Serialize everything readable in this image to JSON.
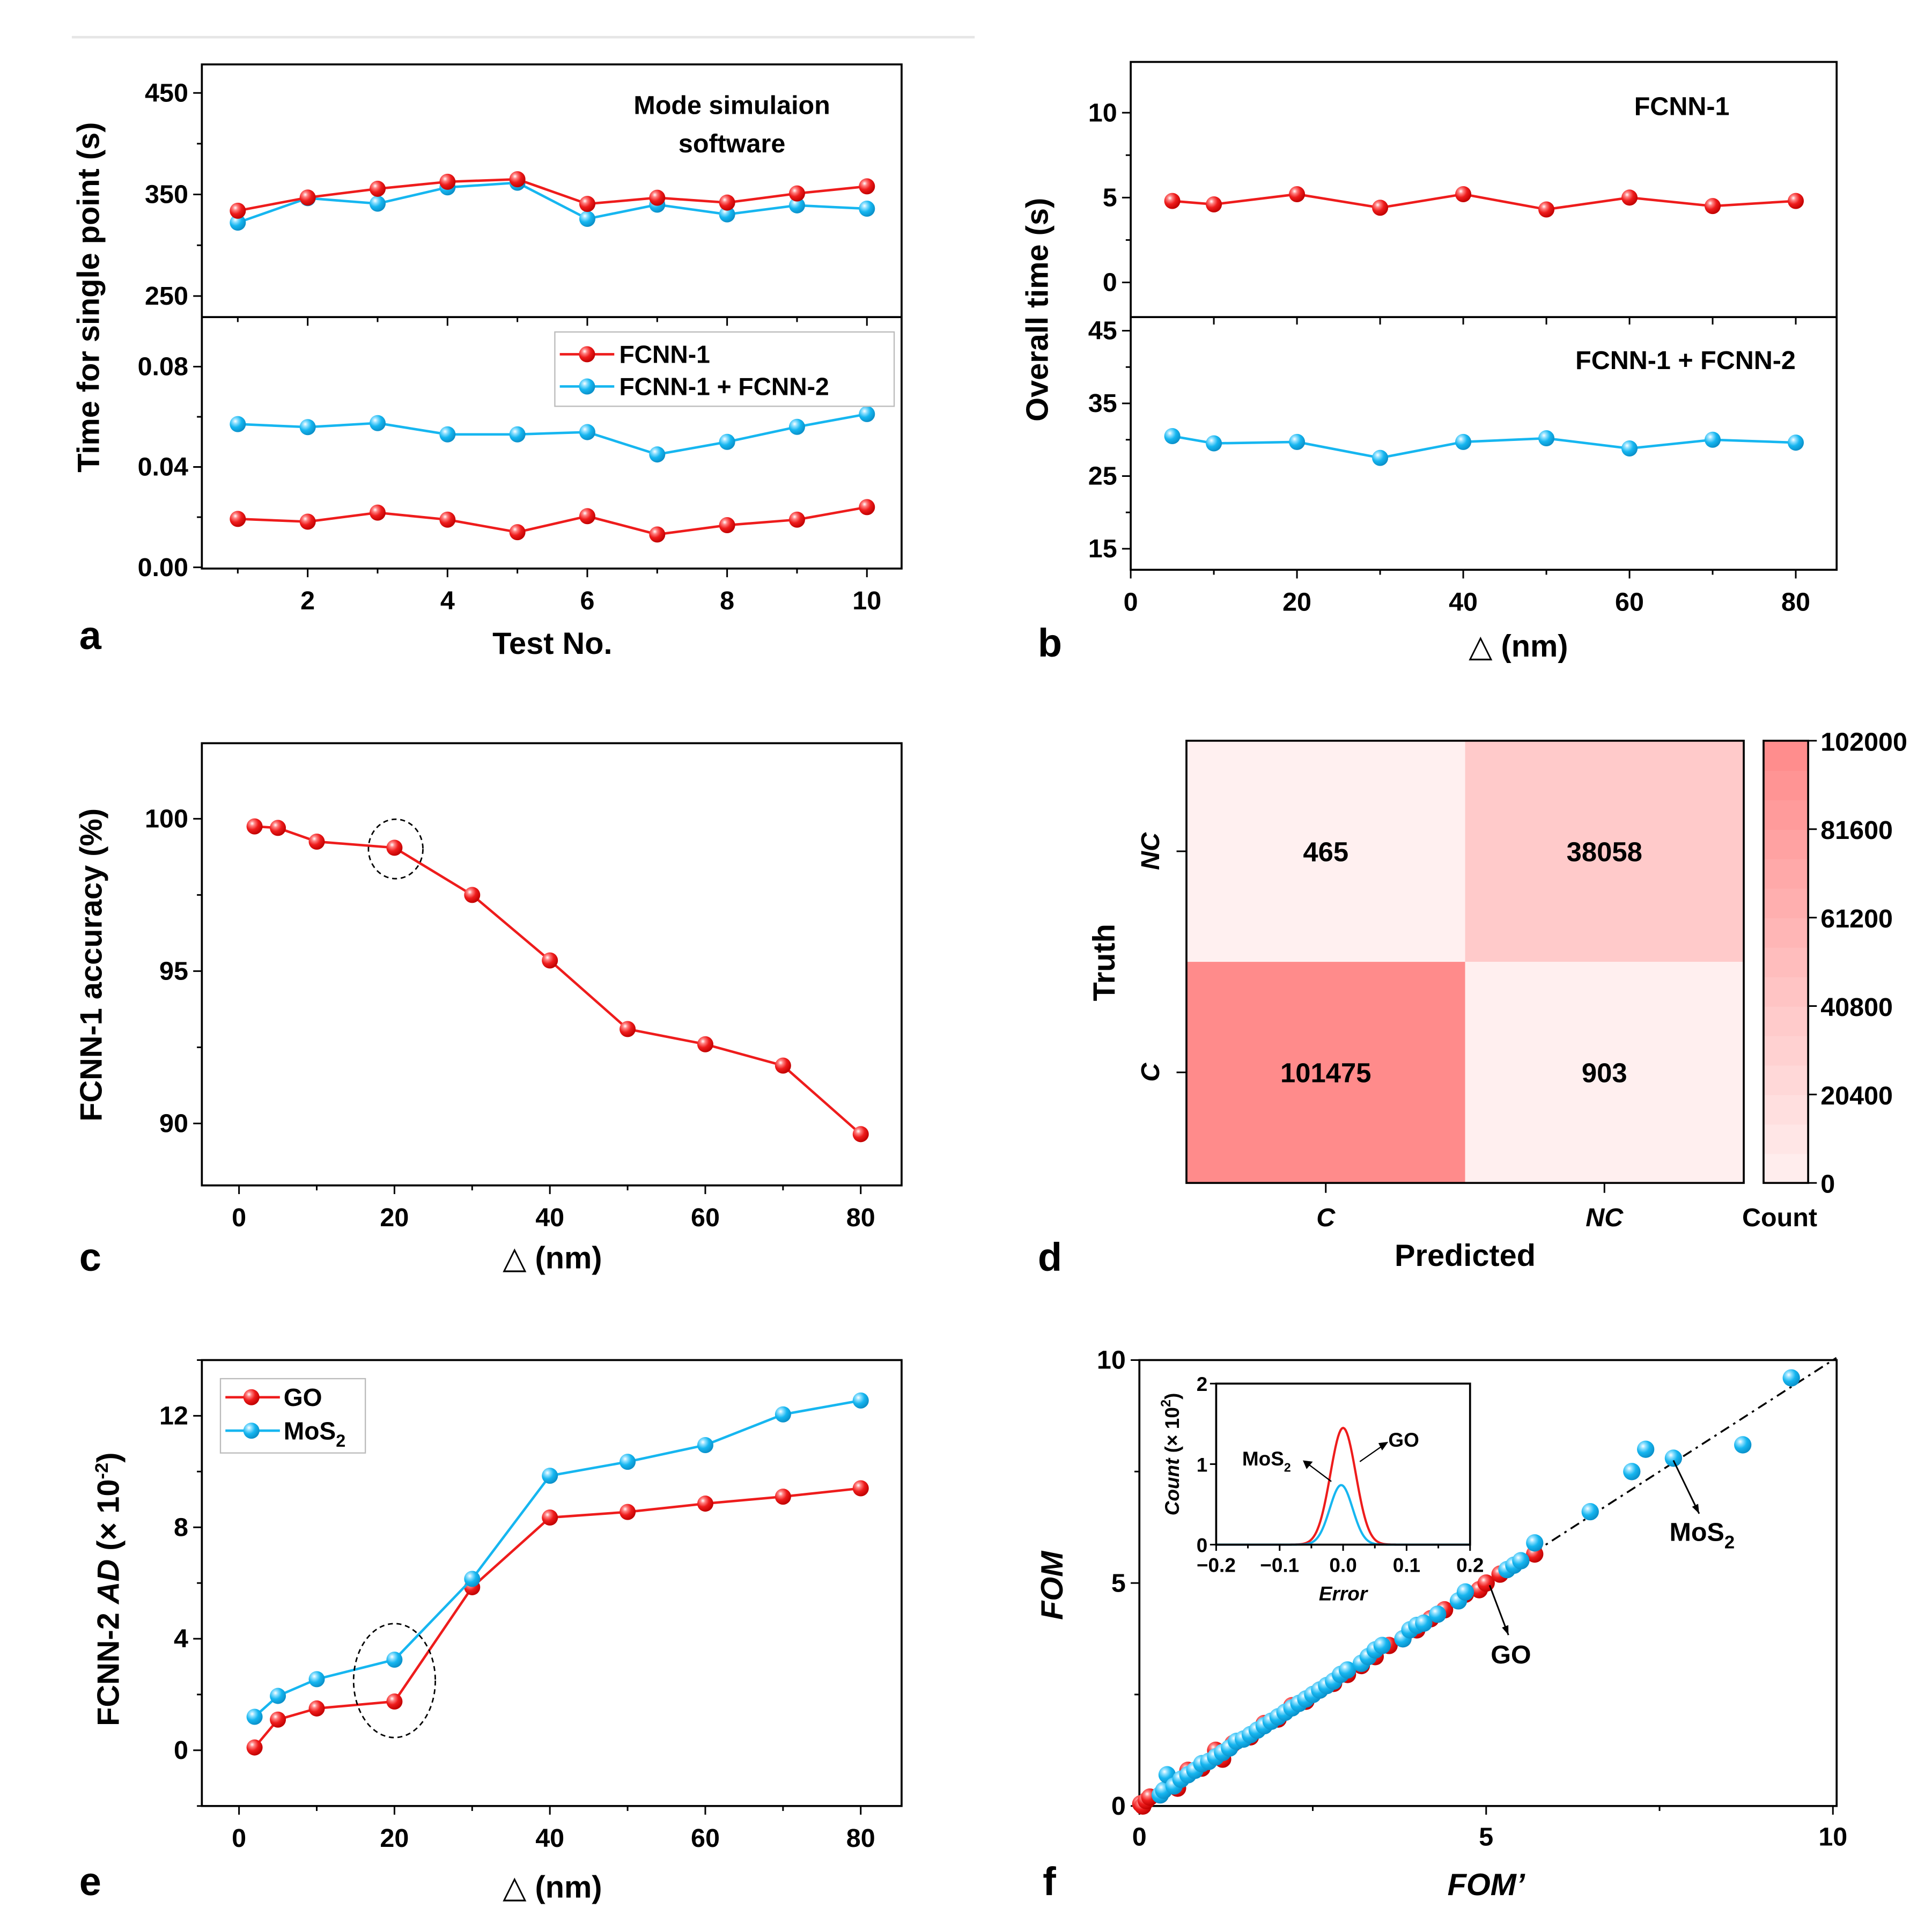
{
  "colors": {
    "red": "#ee1c1c",
    "blue": "#16b6f0",
    "heat_low": "#fff0f0",
    "heat_high": "#ff8a8a",
    "divider": "#e6e6e6"
  },
  "chart_data": [
    {
      "id": "a",
      "panel_letter": "a",
      "type": "line",
      "title": "",
      "xlabel": "Test No.",
      "ylabel": "Time for single point (s)",
      "x": [
        1,
        2,
        3,
        4,
        5,
        6,
        7,
        8,
        9,
        10
      ],
      "x_ticks": [
        2,
        4,
        6,
        8,
        10
      ],
      "subplots": [
        {
          "name": "upper",
          "annotation": [
            "Mode simulaion",
            "software"
          ],
          "ylim": [
            235,
            475
          ],
          "y_ticks": [
            250,
            350,
            450
          ],
          "series": [
            {
              "name": "FCNN-1",
              "color": "red",
              "values": [
                334,
                347,
                355.6,
                362.5,
                365,
                340.7,
                346.8,
                342,
                351,
                358
              ]
            },
            {
              "name": "FCNN-1 + FCNN-2",
              "color": "blue",
              "values": [
                322.3,
                346.4,
                341,
                357,
                361.6,
                326,
                340,
                330.4,
                339.3,
                336
              ]
            }
          ]
        },
        {
          "name": "lower",
          "ylim": [
            0,
            0.098
          ],
          "y_ticks": [
            0.0,
            0.04,
            0.08
          ],
          "y_tick_labels": [
            "0.00",
            "0.04",
            "0.08"
          ],
          "series": [
            {
              "name": "FCNN-1",
              "color": "red",
              "values": [
                0.0193,
                0.0182,
                0.0218,
                0.019,
                0.014,
                0.0204,
                0.0131,
                0.0168,
                0.019,
                0.024
              ]
            },
            {
              "name": "FCNN-1 + FCNN-2",
              "color": "blue",
              "values": [
                0.0571,
                0.0559,
                0.0575,
                0.053,
                0.053,
                0.0539,
                0.045,
                0.05,
                0.056,
                0.0611
              ]
            }
          ]
        }
      ],
      "legend": {
        "position": "lower-subplot top-right",
        "entries": [
          "FCNN-1",
          "FCNN-1 + FCNN-2"
        ]
      }
    },
    {
      "id": "b",
      "panel_letter": "b",
      "type": "line",
      "xlabel": "△ (nm)",
      "ylabel": "Overall time (s)",
      "x": [
        5,
        10,
        20,
        30,
        40,
        50,
        60,
        70,
        80
      ],
      "xlim": [
        0,
        85
      ],
      "x_ticks": [
        0,
        20,
        40,
        60,
        80
      ],
      "subplots": [
        {
          "name": "upper",
          "annotation": [
            "FCNN-1"
          ],
          "ylim": [
            -2,
            13
          ],
          "y_ticks": [
            0,
            5,
            10
          ],
          "series": [
            {
              "name": "FCNN-1",
              "color": "red",
              "values": [
                4.8,
                4.6,
                5.2,
                4.4,
                5.2,
                4.3,
                5.0,
                4.5,
                4.8
              ]
            }
          ]
        },
        {
          "name": "lower",
          "annotation": [
            "FCNN-1 + FCNN-2"
          ],
          "ylim": [
            12,
            47
          ],
          "y_ticks": [
            15,
            25,
            35,
            45
          ],
          "series": [
            {
              "name": "FCNN-1 + FCNN-2",
              "color": "blue",
              "values": [
                30.5,
                29.5,
                29.7,
                27.5,
                29.7,
                30.2,
                28.8,
                30.0,
                29.6
              ]
            }
          ]
        }
      ]
    },
    {
      "id": "c",
      "panel_letter": "c",
      "type": "line",
      "xlabel": "△ (nm)",
      "ylabel": "FCNN-1 accuracy (%)",
      "x": [
        2,
        5,
        10,
        20,
        30,
        40,
        50,
        60,
        70,
        80
      ],
      "xlim": [
        -5,
        85
      ],
      "ylim": [
        88,
        102.5
      ],
      "x_ticks": [
        0,
        20,
        40,
        60,
        80
      ],
      "y_ticks": [
        90,
        95,
        100
      ],
      "series": [
        {
          "name": "FCNN-1",
          "color": "red",
          "values": [
            99.75,
            99.7,
            99.25,
            99.05,
            97.5,
            95.35,
            93.1,
            92.6,
            91.9,
            89.65
          ]
        }
      ],
      "highlight": {
        "x": 20,
        "y": 99.05,
        "style": "dashed-circle"
      }
    },
    {
      "id": "d",
      "panel_letter": "d",
      "type": "heatmap",
      "xlabel": "Predicted",
      "ylabel": "Truth",
      "x_categories": [
        "C",
        "NC"
      ],
      "y_categories": [
        "NC",
        "C"
      ],
      "values": [
        [
          465,
          38058
        ],
        [
          101475,
          903
        ]
      ],
      "value_labels": [
        [
          "465",
          "38058"
        ],
        [
          "101475",
          "903"
        ]
      ],
      "colorbar": {
        "label": "Count",
        "range": [
          0,
          102000
        ],
        "ticks": [
          0,
          20400,
          40800,
          61200,
          81600,
          102000
        ]
      }
    },
    {
      "id": "e",
      "panel_letter": "e",
      "type": "line",
      "xlabel": "△ (nm)",
      "ylabel_parts": [
        "FCNN-2 ",
        "AD",
        " (× 10",
        "-2",
        ")"
      ],
      "x": [
        2,
        5,
        10,
        20,
        30,
        40,
        50,
        60,
        70,
        80
      ],
      "xlim": [
        -5,
        85
      ],
      "ylim": [
        -2,
        14
      ],
      "x_ticks": [
        0,
        20,
        40,
        60,
        80
      ],
      "y_ticks": [
        0,
        4,
        8,
        12
      ],
      "series": [
        {
          "name": "GO",
          "color": "red",
          "values": [
            0.1,
            1.1,
            1.5,
            1.75,
            5.85,
            8.35,
            8.55,
            8.85,
            9.1,
            9.4
          ]
        },
        {
          "name": "MoS2",
          "color": "blue",
          "values": [
            1.2,
            1.95,
            2.55,
            3.25,
            6.15,
            9.85,
            10.35,
            10.95,
            12.05,
            12.55
          ]
        }
      ],
      "legend": {
        "position": "top-left",
        "entries": [
          "GO",
          "MoS2"
        ]
      },
      "highlight": {
        "x": 20,
        "y": 2.5,
        "style": "dashed-ellipse"
      }
    },
    {
      "id": "f",
      "panel_letter": "f",
      "type": "scatter",
      "xlabel": "FOM’",
      "ylabel": "FOM",
      "xlim": [
        0,
        10
      ],
      "ylim": [
        0,
        10
      ],
      "x_ticks": [
        0,
        5,
        10
      ],
      "y_ticks": [
        0,
        5,
        10
      ],
      "reference_line": "y = x (dash-dot)",
      "series": [
        {
          "name": "GO",
          "color": "red",
          "points": [
            [
              0.02,
              0.05
            ],
            [
              0.05,
              0.0
            ],
            [
              0.1,
              0.12
            ],
            [
              0.15,
              0.2
            ],
            [
              0.3,
              0.25
            ],
            [
              0.45,
              0.55
            ],
            [
              0.55,
              0.4
            ],
            [
              0.7,
              0.8
            ],
            [
              0.9,
              0.85
            ],
            [
              1.1,
              1.25
            ],
            [
              1.2,
              1.05
            ],
            [
              1.35,
              1.4
            ],
            [
              1.6,
              1.55
            ],
            [
              1.8,
              1.85
            ],
            [
              2.0,
              1.95
            ],
            [
              2.2,
              2.25
            ],
            [
              2.4,
              2.35
            ],
            [
              2.6,
              2.6
            ],
            [
              2.8,
              2.75
            ],
            [
              3.0,
              2.95
            ],
            [
              3.2,
              3.15
            ],
            [
              3.4,
              3.35
            ],
            [
              3.6,
              3.6
            ],
            [
              3.8,
              3.75
            ],
            [
              4.0,
              3.95
            ],
            [
              4.2,
              4.2
            ],
            [
              4.4,
              4.4
            ],
            [
              4.7,
              4.75
            ],
            [
              4.9,
              4.85
            ],
            [
              5.0,
              5.0
            ],
            [
              5.2,
              5.2
            ],
            [
              5.7,
              5.65
            ]
          ]
        },
        {
          "name": "MoS2",
          "color": "blue",
          "points": [
            [
              0.3,
              0.25
            ],
            [
              0.35,
              0.35
            ],
            [
              0.4,
              0.7
            ],
            [
              0.5,
              0.45
            ],
            [
              0.6,
              0.6
            ],
            [
              0.7,
              0.7
            ],
            [
              0.8,
              0.8
            ],
            [
              0.9,
              0.95
            ],
            [
              1.0,
              1.0
            ],
            [
              1.1,
              1.1
            ],
            [
              1.2,
              1.2
            ],
            [
              1.3,
              1.3
            ],
            [
              1.4,
              1.45
            ],
            [
              1.5,
              1.5
            ],
            [
              1.6,
              1.6
            ],
            [
              1.7,
              1.7
            ],
            [
              1.8,
              1.8
            ],
            [
              1.9,
              1.9
            ],
            [
              2.0,
              2.0
            ],
            [
              2.1,
              2.1
            ],
            [
              2.2,
              2.2
            ],
            [
              2.3,
              2.3
            ],
            [
              2.4,
              2.4
            ],
            [
              2.5,
              2.5
            ],
            [
              2.6,
              2.6
            ],
            [
              2.7,
              2.7
            ],
            [
              2.8,
              2.8
            ],
            [
              2.9,
              2.95
            ],
            [
              3.0,
              3.05
            ],
            [
              3.2,
              3.2
            ],
            [
              3.3,
              3.35
            ],
            [
              3.4,
              3.5
            ],
            [
              3.5,
              3.6
            ],
            [
              3.8,
              3.75
            ],
            [
              3.9,
              3.95
            ],
            [
              4.0,
              4.05
            ],
            [
              4.1,
              4.1
            ],
            [
              4.3,
              4.3
            ],
            [
              4.6,
              4.6
            ],
            [
              4.7,
              4.8
            ],
            [
              5.3,
              5.3
            ],
            [
              5.4,
              5.4
            ],
            [
              5.5,
              5.5
            ],
            [
              5.7,
              5.9
            ],
            [
              6.5,
              6.6
            ],
            [
              7.1,
              7.5
            ],
            [
              7.3,
              8.0
            ],
            [
              7.7,
              7.8
            ],
            [
              8.7,
              8.1
            ],
            [
              9.4,
              9.6
            ]
          ]
        }
      ],
      "annotations": [
        {
          "text": "GO",
          "points_to": [
            5.05,
            5.0
          ]
        },
        {
          "text": "MoS2",
          "points_to": [
            7.7,
            7.8
          ]
        }
      ],
      "inset": {
        "type": "line",
        "xlabel": "Error",
        "ylabel_parts": [
          "Count",
          " (× 10",
          "2",
          ")"
        ],
        "xlim": [
          -0.2,
          0.2
        ],
        "ylim": [
          0,
          2
        ],
        "x_ticks": [
          -0.2,
          -0.1,
          0.0,
          0.1,
          0.2
        ],
        "x_tick_labels": [
          "−0.2",
          "−0.1",
          "0.0",
          "0.1",
          "0.2"
        ],
        "y_ticks": [
          0,
          1,
          2
        ],
        "series": [
          {
            "name": "GO",
            "color": "red",
            "distribution": "gaussian",
            "peak": 1.45,
            "center": 0.0,
            "sigma": 0.02
          },
          {
            "name": "MoS2",
            "color": "blue",
            "distribution": "gaussian",
            "peak": 0.74,
            "center": -0.003,
            "sigma": 0.018
          }
        ],
        "labels": [
          "GO",
          "MoS2"
        ]
      }
    }
  ]
}
